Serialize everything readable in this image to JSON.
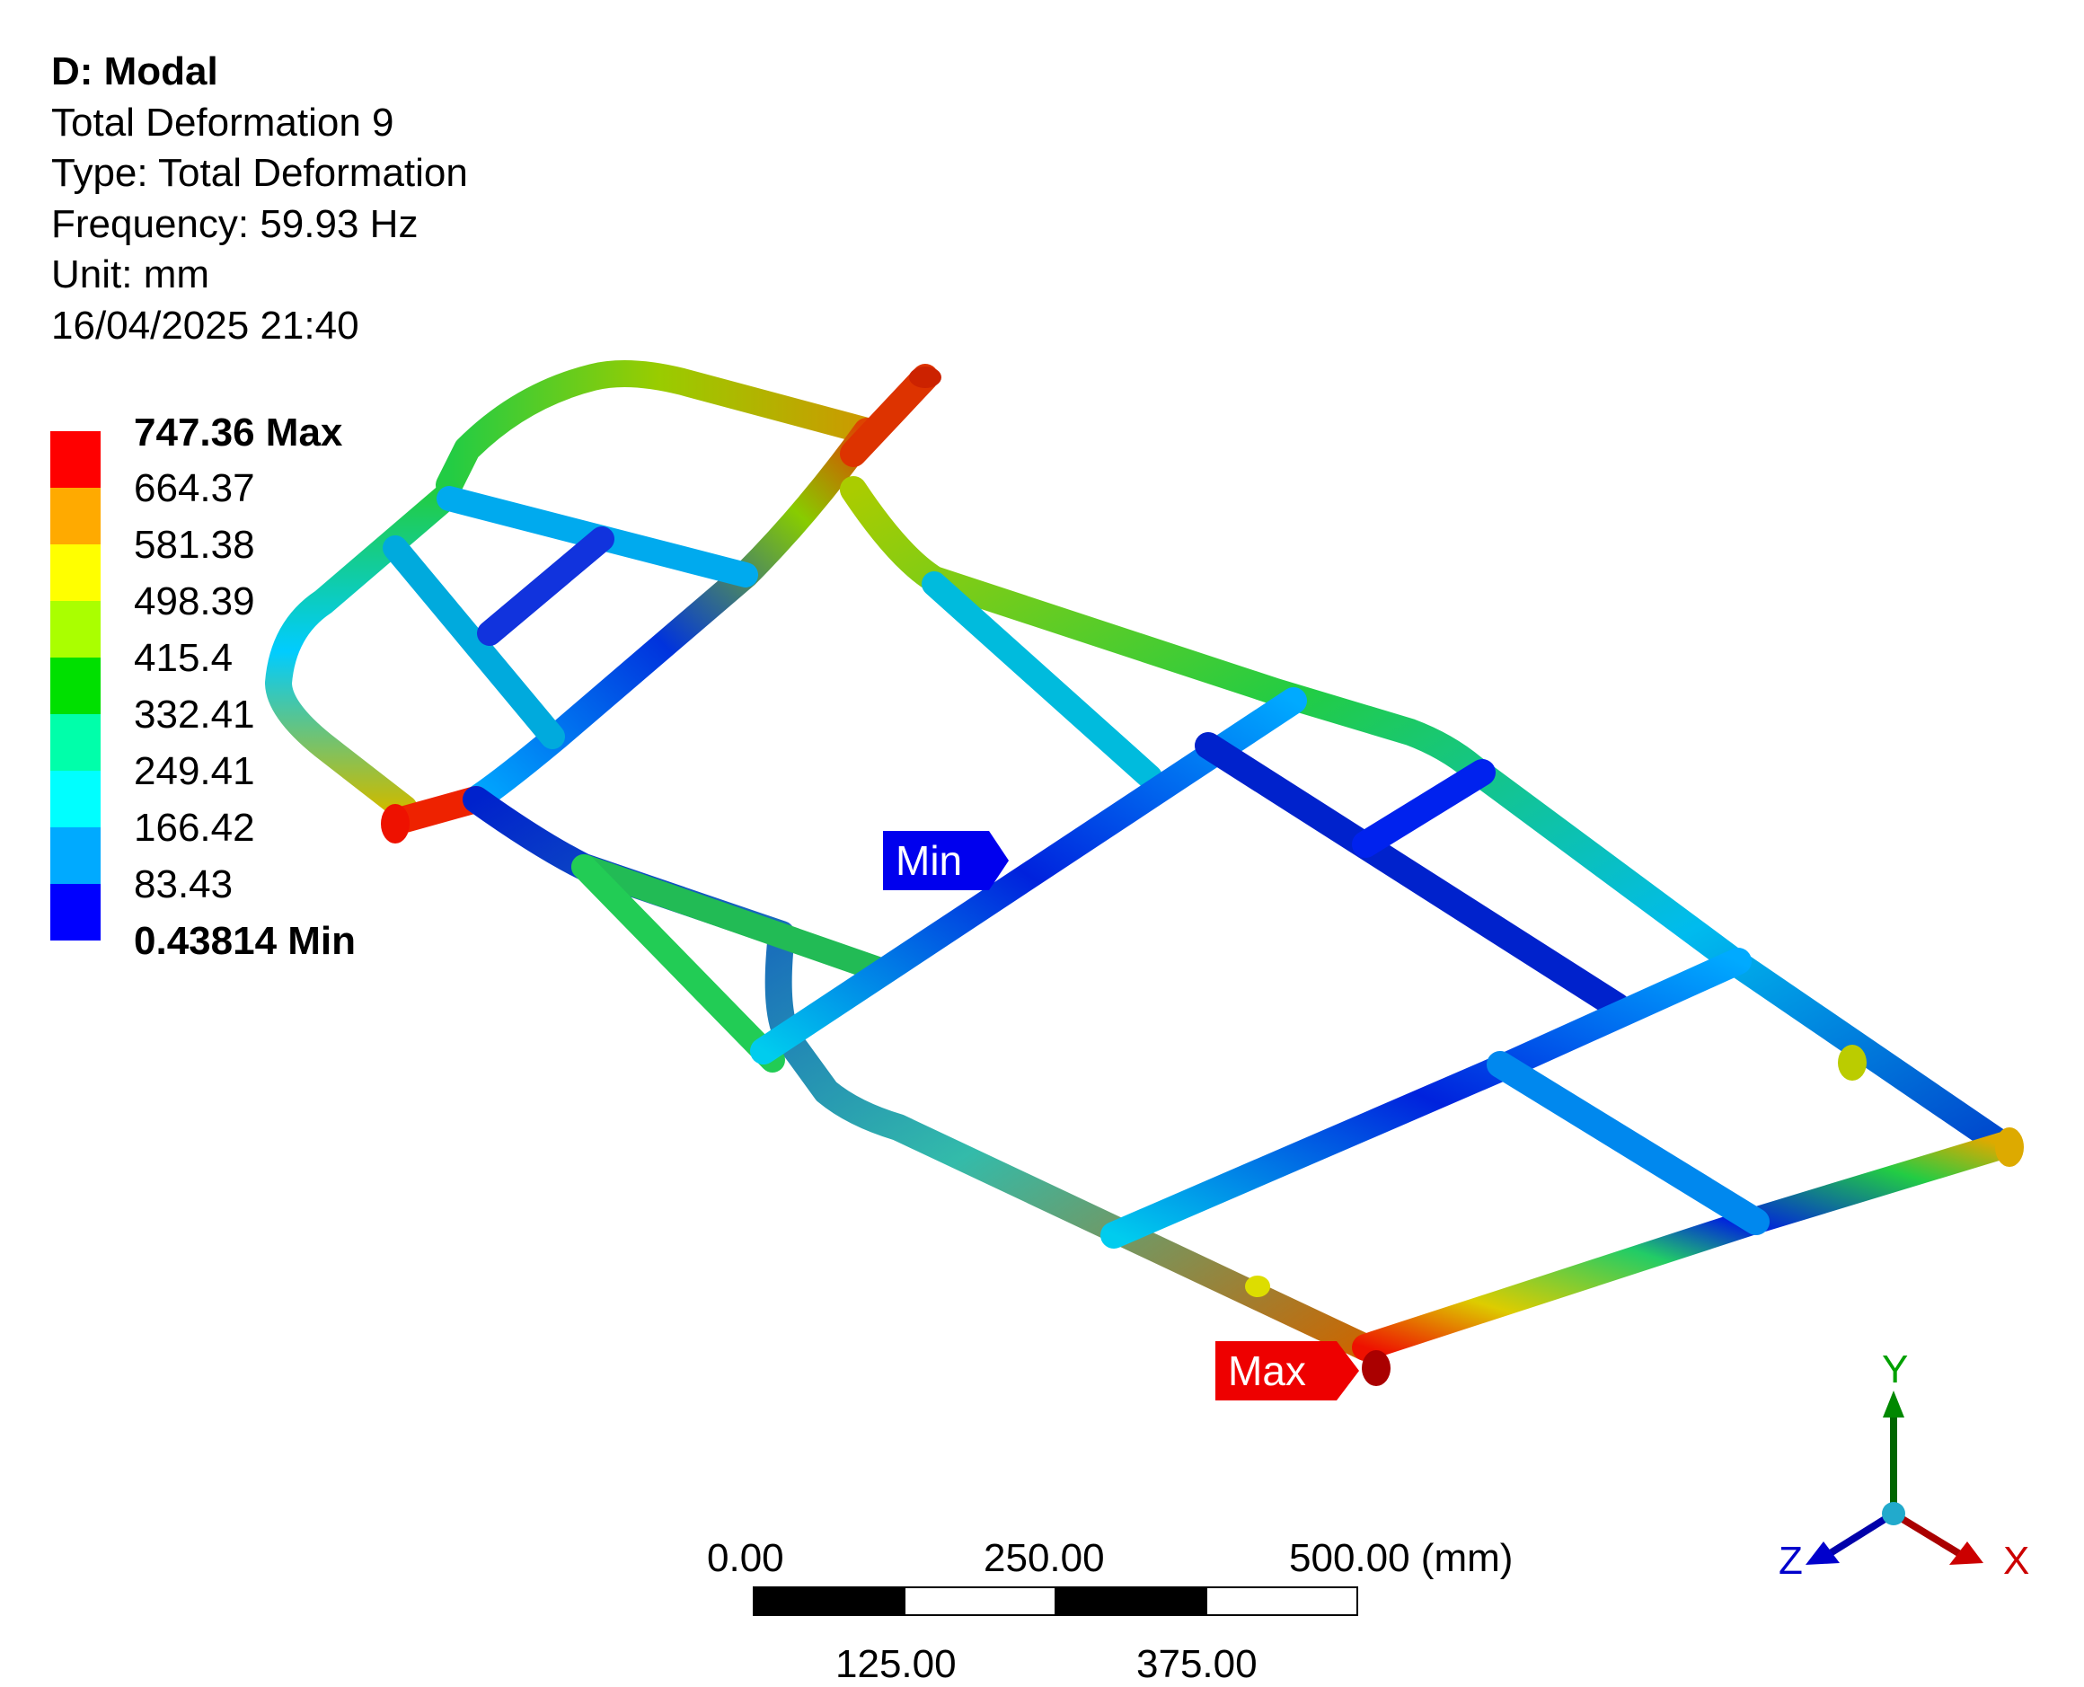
{
  "header": {
    "title": "D: Modal",
    "result_name": "Total Deformation 9",
    "type": "Type: Total Deformation",
    "frequency": "Frequency: 59.93 Hz",
    "unit": "Unit: mm",
    "timestamp": "16/04/2025 21:40"
  },
  "legend": {
    "entries": [
      {
        "label": "747.36 Max",
        "color": "#ff0000",
        "bold": true
      },
      {
        "label": "664.37",
        "color": "#ffaa00",
        "bold": false
      },
      {
        "label": "581.38",
        "color": "#ffff00",
        "bold": false
      },
      {
        "label": "498.39",
        "color": "#aaff00",
        "bold": false
      },
      {
        "label": "415.4",
        "color": "#00e000",
        "bold": false
      },
      {
        "label": "332.41",
        "color": "#00ffaa",
        "bold": false
      },
      {
        "label": "249.41",
        "color": "#00ffff",
        "bold": false
      },
      {
        "label": "166.42",
        "color": "#00aaff",
        "bold": false
      },
      {
        "label": "83.43",
        "color": "#0000ff",
        "bold": false
      },
      {
        "label": "0.43814 Min",
        "color": null,
        "bold": true
      }
    ]
  },
  "probes": {
    "min_label": "Min",
    "max_label": "Max",
    "min_color": "#0000ee",
    "max_color": "#ee0000"
  },
  "scale_bar": {
    "top_labels": [
      "0.00",
      "250.00",
      "500.00 (mm)"
    ],
    "bottom_labels": [
      "125.00",
      "375.00"
    ]
  },
  "triad": {
    "x_label": "X",
    "y_label": "Y",
    "z_label": "Z",
    "x_color": "#cc0000",
    "y_color": "#00a000",
    "z_color": "#0000cc"
  }
}
